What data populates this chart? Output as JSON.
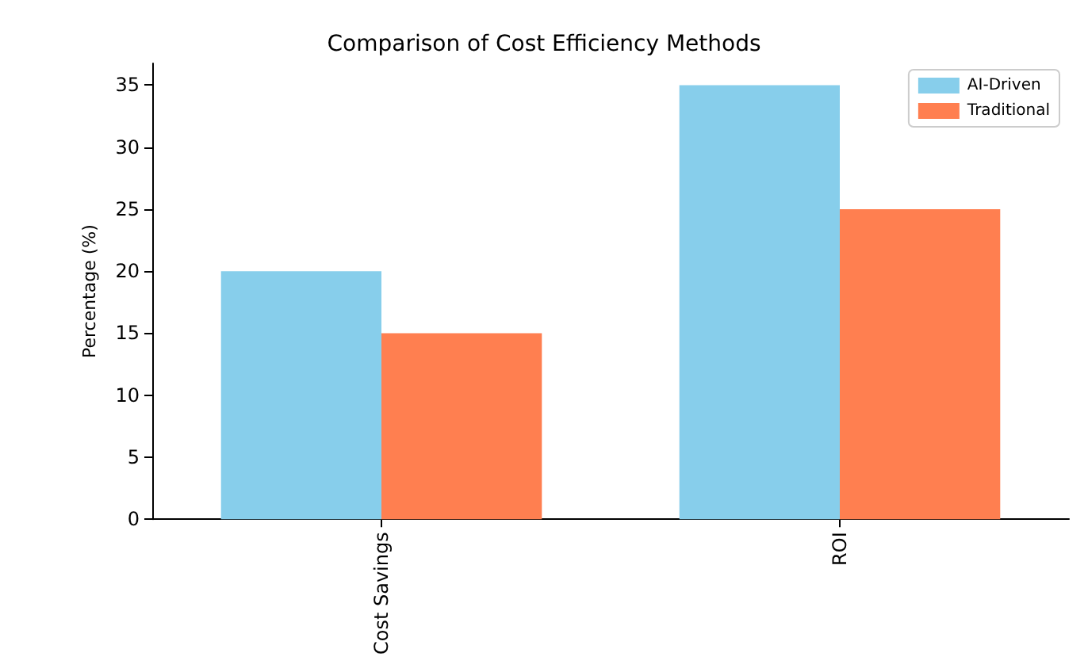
{
  "chart_data": {
    "type": "bar",
    "title": "Comparison of Cost Efficiency Methods",
    "ylabel": "Percentage (%)",
    "categories": [
      "Cost Savings",
      "ROI"
    ],
    "series": [
      {
        "name": "AI-Driven",
        "color": "#87ceeb",
        "values": [
          20,
          35
        ]
      },
      {
        "name": "Traditional",
        "color": "#ff7f50",
        "values": [
          15,
          25
        ]
      }
    ],
    "ylim": [
      0,
      36.75
    ],
    "yticks": [
      0,
      5,
      10,
      15,
      20,
      25,
      30,
      35
    ],
    "grid": false,
    "legend": "top right"
  }
}
